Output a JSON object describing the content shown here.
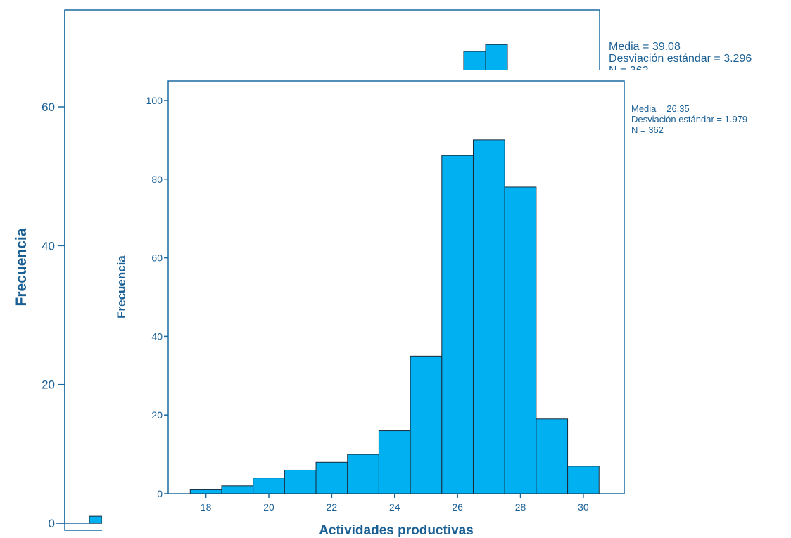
{
  "colors": {
    "bar_fill": "#00b0f0",
    "bar_stroke": "#1b2a3a",
    "axis": "#1a6aa0",
    "text": "#1a5f94"
  },
  "chart_data": [
    {
      "type": "bar",
      "role": "background-histogram",
      "ylabel": "Frecuencia",
      "y_ticks": [
        0,
        20,
        40,
        60
      ],
      "values": [
        1,
        68,
        69
      ],
      "stats": {
        "mean": "Media = 39.08",
        "sd": "Desviación estándar = 3.296",
        "n": "N = 362"
      }
    },
    {
      "type": "bar",
      "role": "histogram",
      "xlabel": "Actividades productivas",
      "ylabel": "Frecuencia",
      "bin_width": 1,
      "bin_centers": [
        18,
        19,
        20,
        21,
        22,
        23,
        24,
        25,
        26,
        27,
        28,
        29,
        30
      ],
      "values": [
        1,
        2,
        4,
        6,
        8,
        10,
        16,
        35,
        86,
        90,
        78,
        19,
        7
      ],
      "x_ticks": [
        18,
        20,
        22,
        24,
        26,
        28,
        30
      ],
      "y_ticks": [
        0,
        20,
        40,
        60,
        80,
        100
      ],
      "xlim": [
        16.8,
        31.3
      ],
      "ylim": [
        0,
        105
      ],
      "grid": false,
      "stats": {
        "mean": "Media = 26.35",
        "sd": "Desviación estándar = 1.979",
        "n": "N = 362"
      }
    }
  ]
}
